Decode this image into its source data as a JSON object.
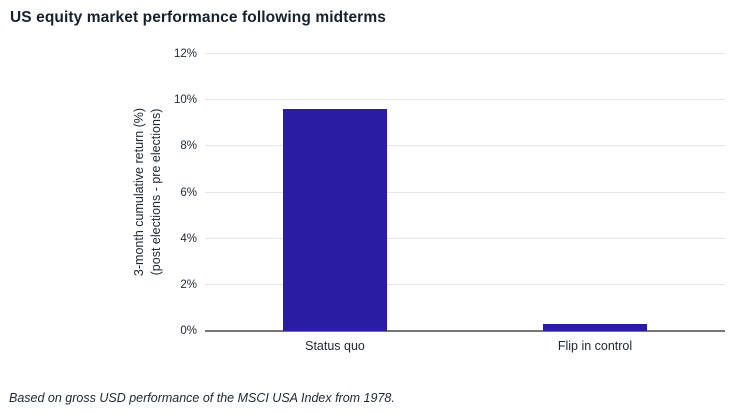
{
  "header": {
    "title": "US equity market performance following midterms"
  },
  "chart_data": {
    "type": "bar",
    "categories": [
      "Status quo",
      "Flip in control"
    ],
    "values": [
      9.6,
      0.3
    ],
    "title": "US equity market performance following midterms",
    "xlabel": "",
    "ylabel_line1": "3-month cumulative return (%)",
    "ylabel_line2": "(post elections - pre elections)",
    "ylim": [
      0,
      12
    ],
    "yticks": [
      0,
      2,
      4,
      6,
      8,
      10,
      12
    ],
    "ytick_labels": [
      "0%",
      "2%",
      "4%",
      "6%",
      "8%",
      "10%",
      "12%"
    ],
    "grid": true,
    "legend": "none",
    "bar_color": "#2a1ca3"
  },
  "colors": {
    "bar": "#2a1ca3",
    "grid": "#e6e6e6",
    "axis_baseline": "#757575",
    "title_text": "#16212e",
    "tick_text": "#222a35"
  },
  "footnote": {
    "text": "Based on gross USD performance of the MSCI USA Index from 1978."
  }
}
